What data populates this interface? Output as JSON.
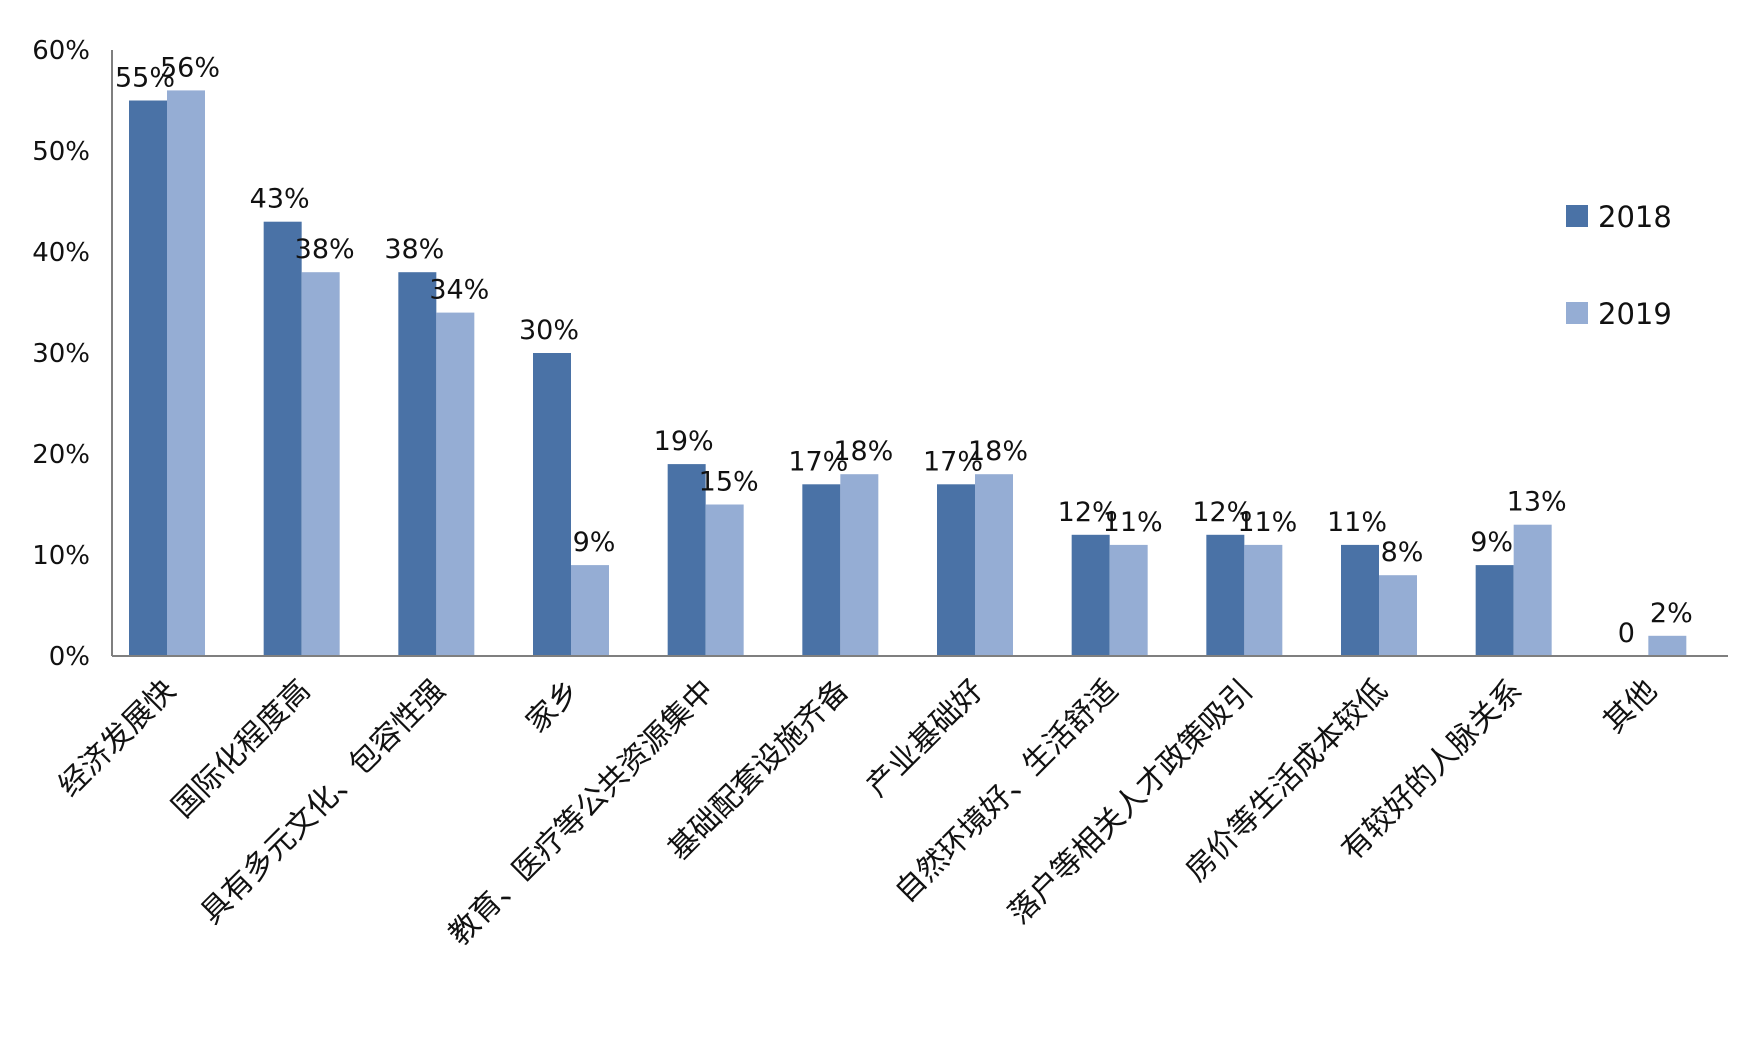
{
  "chart_data": {
    "type": "bar",
    "categories": [
      "经济发展快",
      "国际化程度高",
      "具有多元文化、包容性强",
      "家乡",
      "教育、医疗等公共资源集中",
      "基础配套设施齐备",
      "产业基础好",
      "自然环境好、生活舒适",
      "落户等相关人才政策吸引",
      "房价等生活成本较低",
      "有较好的人脉关系",
      "其他"
    ],
    "series": [
      {
        "name": "2018",
        "color": "#4a72a6",
        "values": [
          55,
          43,
          38,
          30,
          19,
          17,
          17,
          12,
          12,
          11,
          9,
          0
        ],
        "labels": [
          "55%",
          "43%",
          "38%",
          "30%",
          "19%",
          "17%",
          "17%",
          "12%",
          "12%",
          "11%",
          "9%",
          "0"
        ]
      },
      {
        "name": "2019",
        "color": "#95add4",
        "values": [
          56,
          38,
          34,
          9,
          15,
          18,
          18,
          11,
          11,
          8,
          13,
          2
        ],
        "labels": [
          "56%",
          "38%",
          "34%",
          "9%",
          "15%",
          "18%",
          "18%",
          "11%",
          "11%",
          "8%",
          "13%",
          "2%"
        ]
      }
    ],
    "yticks": [
      "0%",
      "10%",
      "20%",
      "30%",
      "40%",
      "50%",
      "60%"
    ],
    "ylim": [
      0,
      60
    ],
    "unit": "%",
    "title": "",
    "xlabel": "",
    "ylabel": "",
    "grid": false,
    "legend": "right"
  }
}
